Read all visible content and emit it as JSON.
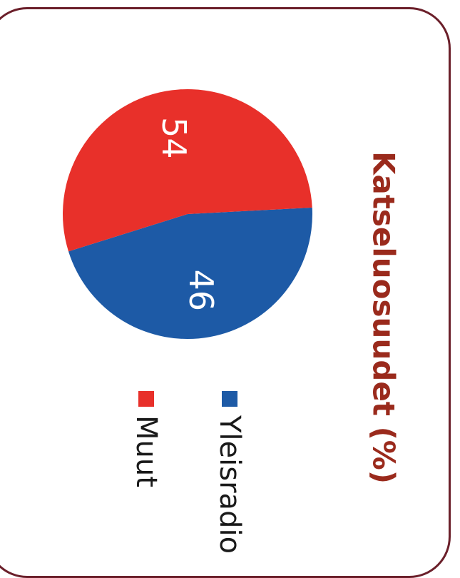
{
  "chart_data": {
    "type": "pie",
    "title": "Katseluosuudet (%)",
    "unit": "%",
    "slices": [
      {
        "label": "Yleisradio",
        "value": 46,
        "color": "#1d5aa6"
      },
      {
        "label": "Muut",
        "value": 54,
        "color": "#e8302a"
      }
    ],
    "legend_placement": "bottom"
  }
}
